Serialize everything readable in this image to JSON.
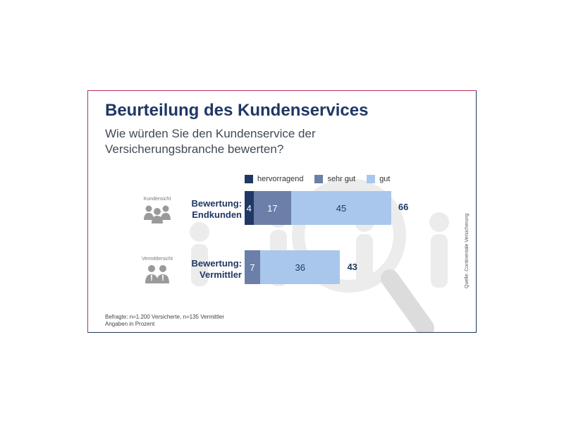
{
  "title": "Beurteilung des Kundenservices",
  "subtitle": "Wie würden Sie den Kundenservice der Versicherungsbranche bewerten?",
  "legend": [
    "hervorragend",
    "sehr gut",
    "gut"
  ],
  "colors": {
    "hervorragend": "#1f3864",
    "sehr_gut": "#6b7fa8",
    "gut": "#a9c7ec",
    "text": "#1f3864",
    "border_left": "#b8325a",
    "border_right": "#1f3864",
    "icon": "#9a9a9a",
    "background_art": "#ececec"
  },
  "icons": {
    "kundensicht": "group-of-people-icon",
    "vermittlersicht": "business-people-icon",
    "background": "magnifier-and-people-icon"
  },
  "footnote": [
    "Befragte: n=1.200 Versicherte, n=135 Vermittler",
    "Angaben in Prozent"
  ],
  "source": "Quelle: Continentale Versicherung",
  "chart_data": {
    "type": "bar",
    "orientation": "horizontal",
    "stacked": true,
    "title": "Beurteilung des Kundenservices",
    "subtitle": "Wie würden Sie den Kundenservice der Versicherungsbranche bewerten?",
    "categories": [
      "Bewertung:\nEndkunden",
      "Bewertung:\nVermittler"
    ],
    "perspectives": [
      "Kundensicht",
      "Vermittlersicht"
    ],
    "series": [
      {
        "name": "hervorragend",
        "values": [
          4,
          0
        ]
      },
      {
        "name": "sehr gut",
        "values": [
          17,
          7
        ]
      },
      {
        "name": "gut",
        "values": [
          45,
          36
        ]
      }
    ],
    "totals": [
      66,
      43
    ],
    "unit": "Prozent",
    "legend_position": "top",
    "grid": false
  }
}
